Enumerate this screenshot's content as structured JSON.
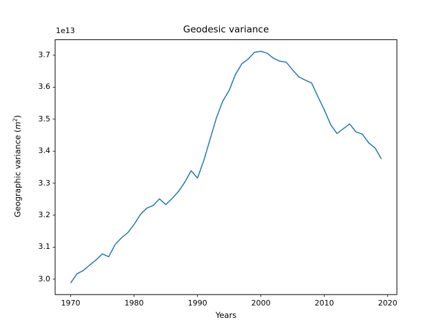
{
  "chart_data": {
    "type": "line",
    "title": "Geodesic variance",
    "xlabel": "Years",
    "ylabel_parts": {
      "prefix": "Geographic variance (",
      "symbol": "m",
      "exponent": "2",
      "suffix": ")"
    },
    "y_offset_text": "1e13",
    "unit_multiplier": 10000000000000.0,
    "line_color": "#1f77b4",
    "spine_color": "#000000",
    "grid": false,
    "legend": null,
    "xlim": [
      1967.55,
      2021.45
    ],
    "ylim": [
      2.9518,
      3.7482
    ],
    "xticks": [
      1970,
      1980,
      1990,
      2000,
      2010,
      2020
    ],
    "yticks": [
      3.0,
      3.1,
      3.2,
      3.3,
      3.4,
      3.5,
      3.6,
      3.7
    ],
    "x": [
      1970,
      1971,
      1972,
      1973,
      1974,
      1975,
      1976,
      1977,
      1978,
      1979,
      1980,
      1981,
      1982,
      1983,
      1984,
      1985,
      1986,
      1987,
      1988,
      1989,
      1990,
      1991,
      1992,
      1993,
      1994,
      1995,
      1996,
      1997,
      1998,
      1999,
      2000,
      2001,
      2002,
      2003,
      2004,
      2005,
      2006,
      2007,
      2008,
      2009,
      2010,
      2011,
      2012,
      2013,
      2014,
      2015,
      2016,
      2017,
      2018,
      2019
    ],
    "values": [
      2.988,
      3.017,
      3.027,
      3.044,
      3.06,
      3.079,
      3.07,
      3.108,
      3.129,
      3.145,
      3.171,
      3.202,
      3.222,
      3.23,
      3.251,
      3.233,
      3.252,
      3.274,
      3.303,
      3.339,
      3.316,
      3.371,
      3.438,
      3.505,
      3.557,
      3.59,
      3.64,
      3.673,
      3.688,
      3.709,
      3.712,
      3.706,
      3.69,
      3.681,
      3.678,
      3.654,
      3.632,
      3.622,
      3.613,
      3.57,
      3.529,
      3.483,
      3.455,
      3.47,
      3.485,
      3.46,
      3.453,
      3.426,
      3.41,
      3.376
    ]
  }
}
